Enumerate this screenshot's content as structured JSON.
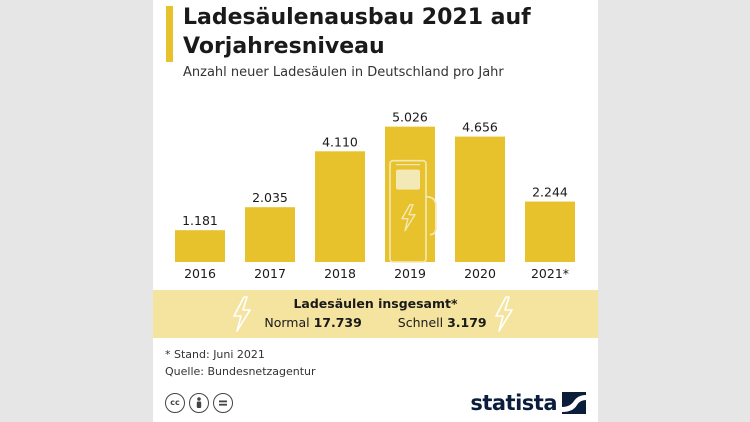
{
  "title": "Ladesäulenausbau 2021 auf Vorjahresniveau",
  "subtitle": "Anzahl neuer Ladesäulen in Deutschland pro Jahr",
  "colors": {
    "bar": "#e8c22c",
    "highlight_band": "#f5e4a0",
    "brand": "#0a1e3c"
  },
  "chart_data": {
    "type": "bar",
    "categories": [
      "2016",
      "2017",
      "2018",
      "2019",
      "2020",
      "2021*"
    ],
    "values": [
      1181,
      2035,
      4110,
      5026,
      4656,
      2244
    ],
    "value_labels": [
      "1.181",
      "2.035",
      "4.110",
      "5.026",
      "4.656",
      "2.244"
    ],
    "title": "Ladesäulenausbau 2021 auf Vorjahresniveau",
    "subtitle": "Anzahl neuer Ladesäulen in Deutschland pro Jahr",
    "xlabel": "",
    "ylabel": "",
    "ylim": [
      0,
      5500
    ],
    "grid": false,
    "legend": "none"
  },
  "totals": {
    "heading": "Ladesäulen insgesamt*",
    "normal_label": "Normal",
    "normal_value": "17.739",
    "fast_label": "Schnell",
    "fast_value": "3.179"
  },
  "notes": {
    "stand": "* Stand: Juni 2021",
    "source": "Quelle: Bundesnetzagentur"
  },
  "license_icons": [
    "cc-icon",
    "attribution-icon",
    "no-derivatives-icon"
  ],
  "brand": {
    "name": "statista"
  }
}
